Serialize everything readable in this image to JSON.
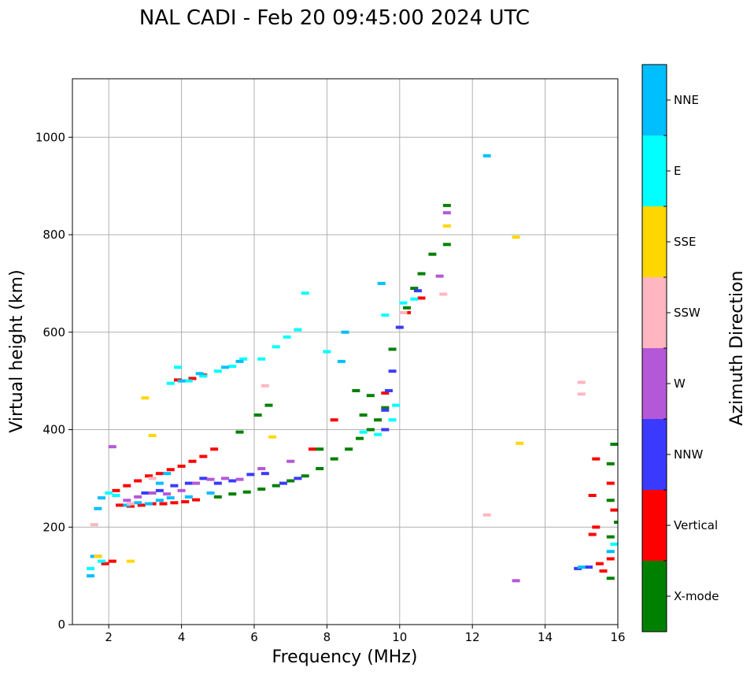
{
  "chart_data": {
    "type": "scatter",
    "title": "NAL CADI - Feb 20 09:45:00 2024 UTC",
    "xlabel": "Frequency (MHz)",
    "ylabel": "Virtual height (km)",
    "xlim": [
      1,
      16
    ],
    "ylim": [
      0,
      1120
    ],
    "x_ticks": [
      "2",
      "4",
      "6",
      "8",
      "10",
      "12",
      "14",
      "16"
    ],
    "y_ticks": [
      "0",
      "200",
      "400",
      "600",
      "800",
      "1000"
    ],
    "grid": true,
    "colorbar": {
      "label": "Azimuth Direction",
      "categories": [
        {
          "name": "X-mode",
          "color": "#008000"
        },
        {
          "name": "Vertical",
          "color": "#ff0000"
        },
        {
          "name": "NNW",
          "color": "#3a3aff"
        },
        {
          "name": "W",
          "color": "#b558d8"
        },
        {
          "name": "SSW",
          "color": "#ffb6c1"
        },
        {
          "name": "SSE",
          "color": "#ffd700"
        },
        {
          "name": "E",
          "color": "#00ffff"
        },
        {
          "name": "NNE",
          "color": "#00bfff"
        }
      ]
    },
    "series": [
      {
        "name": "Vertical",
        "points": [
          [
            2.3,
            245
          ],
          [
            2.6,
            243
          ],
          [
            2.9,
            245
          ],
          [
            3.2,
            248
          ],
          [
            3.5,
            248
          ],
          [
            3.8,
            250
          ],
          [
            4.1,
            252
          ],
          [
            4.4,
            256
          ],
          [
            2.2,
            275
          ],
          [
            2.5,
            285
          ],
          [
            2.8,
            295
          ],
          [
            3.1,
            305
          ],
          [
            3.4,
            310
          ],
          [
            3.7,
            318
          ],
          [
            4.0,
            325
          ],
          [
            4.3,
            335
          ],
          [
            4.6,
            345
          ],
          [
            4.9,
            360
          ],
          [
            3.9,
            502
          ],
          [
            4.3,
            505
          ],
          [
            4.6,
            512
          ],
          [
            1.9,
            125
          ],
          [
            1.7,
            140
          ],
          [
            2.1,
            130
          ],
          [
            7.6,
            360
          ],
          [
            8.2,
            420
          ],
          [
            9.6,
            475
          ],
          [
            10.2,
            640
          ],
          [
            10.6,
            670
          ],
          [
            15.4,
            340
          ],
          [
            15.3,
            265
          ],
          [
            15.4,
            200
          ],
          [
            15.3,
            185
          ],
          [
            15.5,
            125
          ],
          [
            15.6,
            110
          ],
          [
            15.8,
            135
          ],
          [
            15.8,
            290
          ],
          [
            15.9,
            235
          ]
        ]
      },
      {
        "name": "X-mode",
        "points": [
          [
            5.0,
            262
          ],
          [
            5.4,
            268
          ],
          [
            5.8,
            272
          ],
          [
            6.2,
            278
          ],
          [
            6.6,
            285
          ],
          [
            7.0,
            295
          ],
          [
            7.4,
            305
          ],
          [
            7.8,
            320
          ],
          [
            8.2,
            340
          ],
          [
            8.6,
            360
          ],
          [
            8.9,
            382
          ],
          [
            9.2,
            400
          ],
          [
            9.4,
            420
          ],
          [
            9.6,
            445
          ],
          [
            9.0,
            430
          ],
          [
            9.2,
            470
          ],
          [
            8.8,
            480
          ],
          [
            9.8,
            565
          ],
          [
            10.2,
            650
          ],
          [
            10.4,
            690
          ],
          [
            10.6,
            720
          ],
          [
            10.9,
            760
          ],
          [
            11.3,
            780
          ],
          [
            11.3,
            860
          ],
          [
            5.6,
            395
          ],
          [
            6.1,
            430
          ],
          [
            6.4,
            450
          ],
          [
            7.8,
            360
          ],
          [
            15.9,
            370
          ],
          [
            15.8,
            330
          ],
          [
            15.8,
            255
          ],
          [
            15.8,
            180
          ],
          [
            15.8,
            95
          ],
          [
            16.0,
            210
          ]
        ]
      },
      {
        "name": "NNW",
        "points": [
          [
            3.0,
            270
          ],
          [
            3.4,
            275
          ],
          [
            3.8,
            285
          ],
          [
            4.2,
            290
          ],
          [
            4.6,
            300
          ],
          [
            5.0,
            290
          ],
          [
            5.4,
            295
          ],
          [
            5.9,
            308
          ],
          [
            6.3,
            310
          ],
          [
            6.8,
            290
          ],
          [
            7.2,
            300
          ],
          [
            9.6,
            400
          ],
          [
            9.6,
            440
          ],
          [
            9.7,
            480
          ],
          [
            9.8,
            520
          ],
          [
            10.0,
            610
          ],
          [
            10.5,
            685
          ],
          [
            14.9,
            115
          ],
          [
            15.2,
            118
          ]
        ]
      },
      {
        "name": "W",
        "points": [
          [
            2.5,
            255
          ],
          [
            2.8,
            262
          ],
          [
            3.2,
            270
          ],
          [
            3.6,
            268
          ],
          [
            4.0,
            275
          ],
          [
            4.4,
            290
          ],
          [
            4.8,
            298
          ],
          [
            5.2,
            300
          ],
          [
            5.6,
            298
          ],
          [
            6.2,
            320
          ],
          [
            7.0,
            335
          ],
          [
            2.1,
            365
          ],
          [
            11.3,
            845
          ],
          [
            11.1,
            715
          ],
          [
            13.2,
            90
          ]
        ]
      },
      {
        "name": "E",
        "points": [
          [
            1.5,
            115
          ],
          [
            1.8,
            130
          ],
          [
            2.0,
            270
          ],
          [
            2.2,
            265
          ],
          [
            3.7,
            495
          ],
          [
            3.9,
            528
          ],
          [
            4.2,
            500
          ],
          [
            4.6,
            510
          ],
          [
            5.0,
            520
          ],
          [
            5.4,
            530
          ],
          [
            5.7,
            545
          ],
          [
            6.2,
            545
          ],
          [
            6.6,
            570
          ],
          [
            6.9,
            590
          ],
          [
            7.2,
            605
          ],
          [
            7.4,
            680
          ],
          [
            8.0,
            560
          ],
          [
            9.0,
            395
          ],
          [
            9.4,
            390
          ],
          [
            9.8,
            420
          ],
          [
            9.9,
            450
          ],
          [
            9.6,
            635
          ],
          [
            10.1,
            660
          ],
          [
            10.4,
            668
          ],
          [
            15.8,
            150
          ],
          [
            15.9,
            165
          ]
        ]
      },
      {
        "name": "NNE",
        "points": [
          [
            2.5,
            245
          ],
          [
            2.8,
            250
          ],
          [
            3.1,
            248
          ],
          [
            3.4,
            255
          ],
          [
            3.7,
            260
          ],
          [
            4.2,
            262
          ],
          [
            4.8,
            270
          ],
          [
            1.5,
            100
          ],
          [
            1.6,
            140
          ],
          [
            1.7,
            238
          ],
          [
            1.8,
            260
          ],
          [
            3.4,
            290
          ],
          [
            3.6,
            310
          ],
          [
            4.0,
            500
          ],
          [
            4.5,
            515
          ],
          [
            5.2,
            528
          ],
          [
            5.6,
            540
          ],
          [
            8.4,
            540
          ],
          [
            8.5,
            600
          ],
          [
            9.5,
            700
          ],
          [
            12.4,
            962
          ],
          [
            15.0,
            118
          ],
          [
            15.8,
            150
          ]
        ]
      },
      {
        "name": "SSE",
        "points": [
          [
            1.7,
            140
          ],
          [
            2.6,
            130
          ],
          [
            3.0,
            465
          ],
          [
            3.2,
            388
          ],
          [
            6.5,
            385
          ],
          [
            13.2,
            795
          ],
          [
            11.3,
            818
          ],
          [
            13.3,
            372
          ]
        ]
      },
      {
        "name": "SSW",
        "points": [
          [
            1.6,
            205
          ],
          [
            2.6,
            248
          ],
          [
            3.2,
            300
          ],
          [
            12.4,
            225
          ],
          [
            15.0,
            497
          ],
          [
            15.0,
            473
          ],
          [
            10.1,
            640
          ],
          [
            11.2,
            678
          ],
          [
            6.3,
            490
          ]
        ]
      }
    ]
  }
}
